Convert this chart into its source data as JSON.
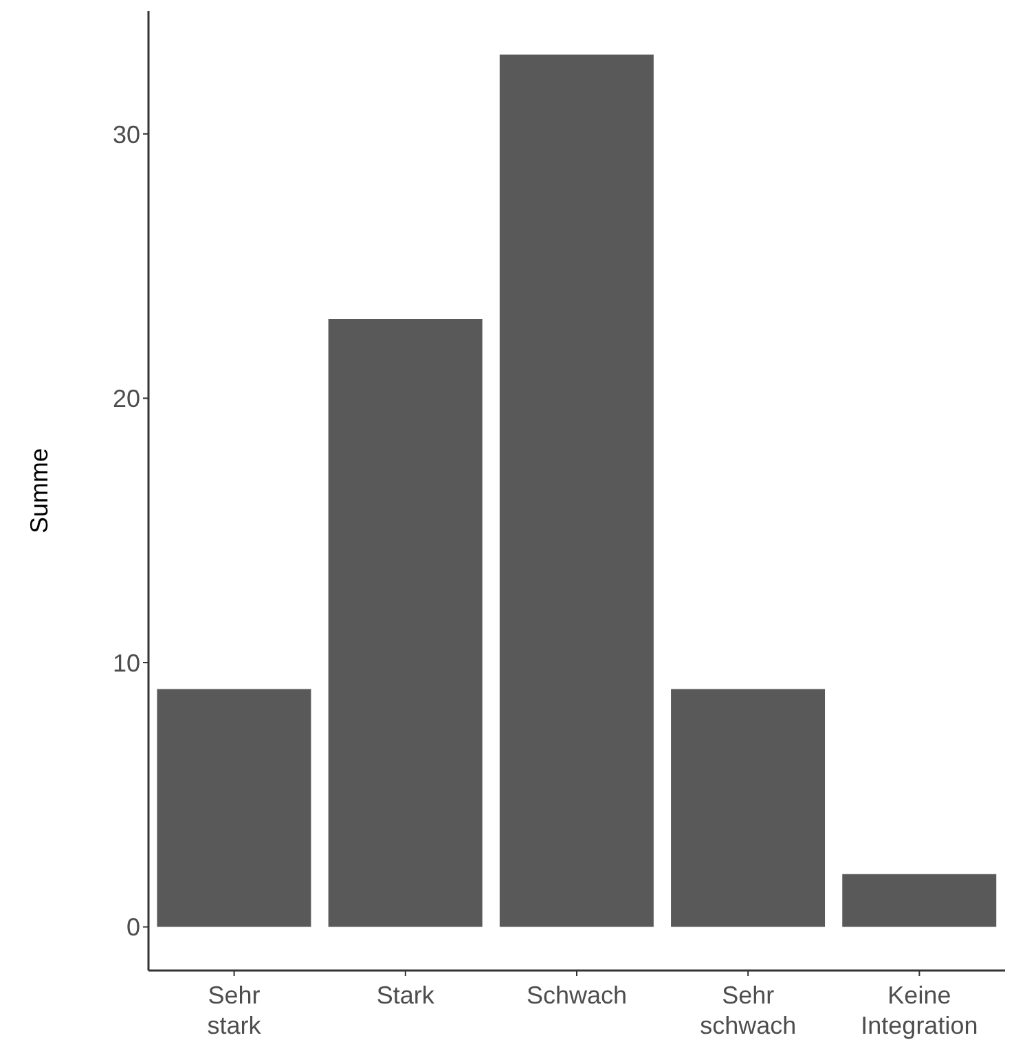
{
  "chart_data": {
    "type": "bar",
    "ylabel": "Summe",
    "categories": [
      "Sehr stark",
      "Stark",
      "Schwach",
      "Sehr schwach",
      "Keine Integration"
    ],
    "values": [
      9,
      23,
      33,
      9,
      2
    ],
    "color": "#595959",
    "ylim": [
      -1.65,
      34.65
    ],
    "yticks": [
      0,
      10,
      20,
      30
    ]
  }
}
